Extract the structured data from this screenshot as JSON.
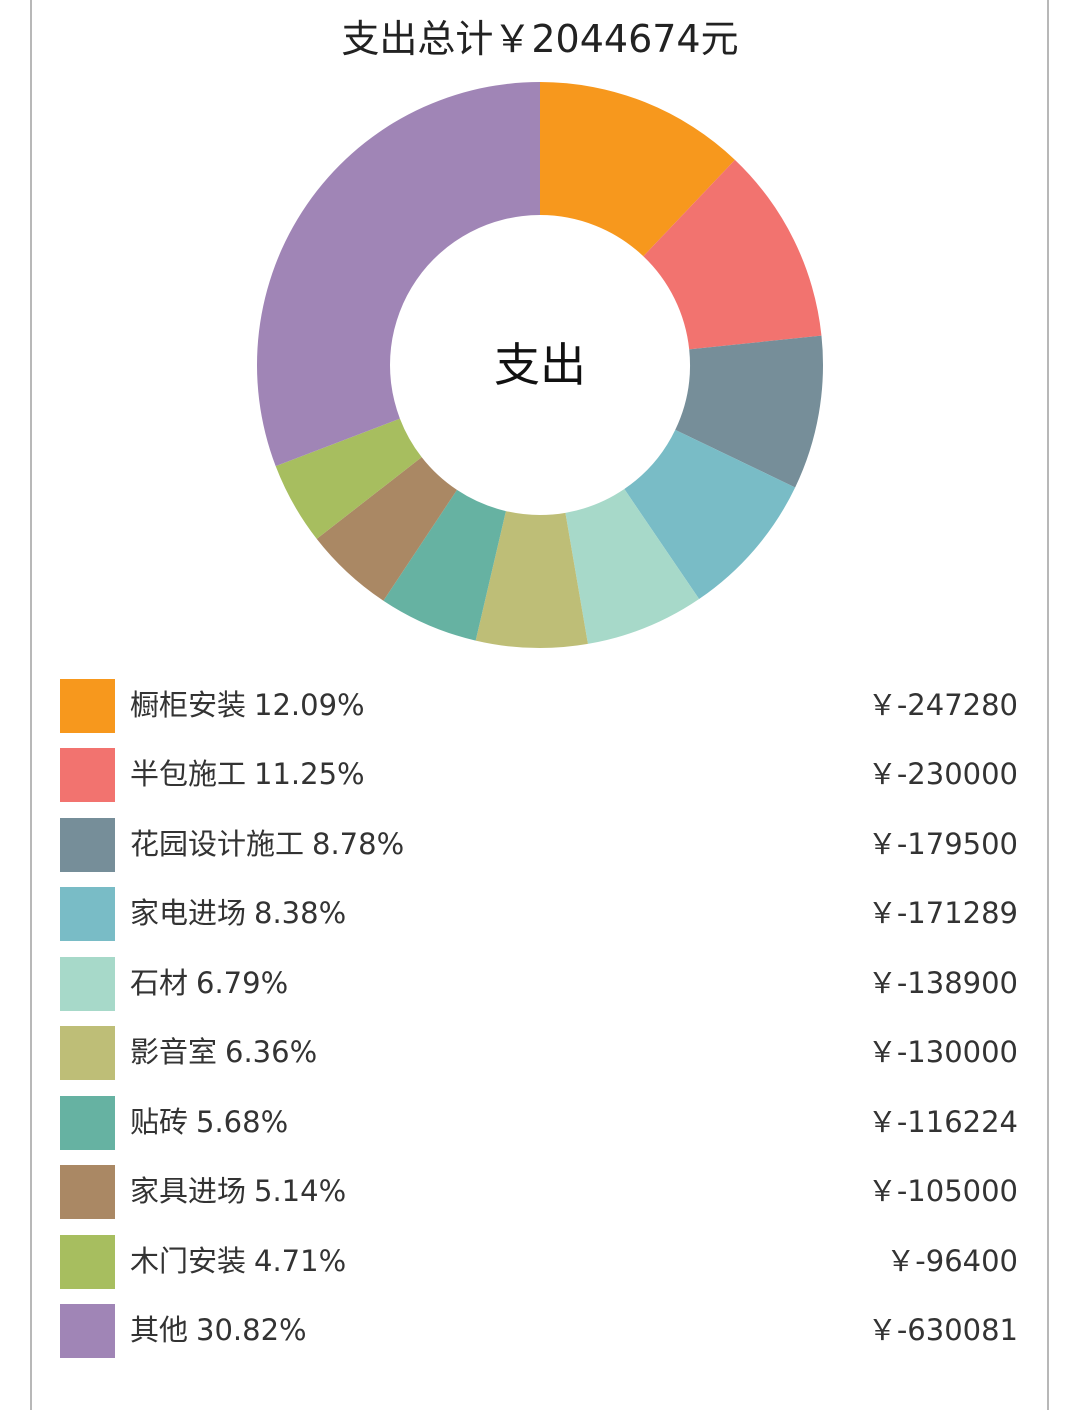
{
  "chart_data": {
    "type": "pie",
    "donut": true,
    "title": "支出总计￥2044674元",
    "center_label": "支出",
    "legend_position": "bottom",
    "slices": [
      {
        "name": "橱柜安装",
        "percent": "12.09%",
        "value": -247280,
        "value_label": "￥-247280",
        "color": "#F7981D"
      },
      {
        "name": "半包施工",
        "percent": "11.25%",
        "value": -230000,
        "value_label": "￥-230000",
        "color": "#F2736F"
      },
      {
        "name": "花园设计施工",
        "percent": "8.78%",
        "value": -179500,
        "value_label": "￥-179500",
        "color": "#768E99"
      },
      {
        "name": "家电进场",
        "percent": "8.38%",
        "value": -171289,
        "value_label": "￥-171289",
        "color": "#79BCC6"
      },
      {
        "name": "石材",
        "percent": "6.79%",
        "value": -138900,
        "value_label": "￥-138900",
        "color": "#A7D9C9"
      },
      {
        "name": "影音室",
        "percent": "6.36%",
        "value": -130000,
        "value_label": "￥-130000",
        "color": "#BEBE77"
      },
      {
        "name": "贴砖",
        "percent": "5.68%",
        "value": -116224,
        "value_label": "￥-116224",
        "color": "#66B2A2"
      },
      {
        "name": "家具进场",
        "percent": "5.14%",
        "value": -105000,
        "value_label": "￥-105000",
        "color": "#AA8864"
      },
      {
        "name": "木门安装",
        "percent": "4.71%",
        "value": -96400,
        "value_label": "￥-96400",
        "color": "#A7BE5F"
      },
      {
        "name": "其他",
        "percent": "30.82%",
        "value": -630081,
        "value_label": "￥-630081",
        "color": "#A085B6"
      }
    ]
  }
}
